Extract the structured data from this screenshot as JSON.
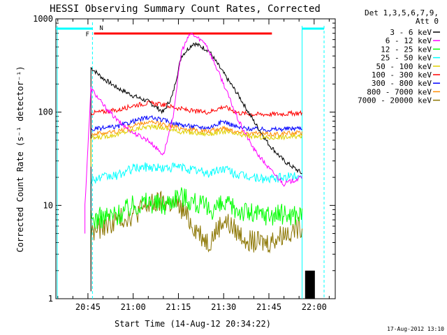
{
  "chart_data": {
    "type": "line",
    "title": "HESSI Observing Summary Count Rates, Corrected",
    "xlabel": "Start Time (14-Aug-12 20:34:22)",
    "ylabel": "Corrected Count Rate (s⁻¹ detector⁻¹)",
    "ylog": true,
    "ylim": [
      1,
      1000
    ],
    "xlim_minutes": [
      "20:34:22",
      "22:07"
    ],
    "x_ticks": [
      "20:45",
      "21:00",
      "21:15",
      "21:30",
      "21:45",
      "22:00"
    ],
    "y_ticks": [
      "1",
      "10",
      "100",
      "1000"
    ],
    "timestamp": "17-Aug-2012 13:10",
    "legend_title": [
      "Det 1,3,5,6,7,9,",
      "Att 0"
    ],
    "flags": {
      "flare_label": "F",
      "night_label": "N"
    },
    "series": [
      {
        "name": "3 - 6 keV",
        "color": "#000000",
        "points": [
          [
            "20:46",
            300
          ],
          [
            "20:50",
            230
          ],
          [
            "20:55",
            180
          ],
          [
            "21:00",
            150
          ],
          [
            "21:05",
            130
          ],
          [
            "21:10",
            100
          ],
          [
            "21:13",
            150
          ],
          [
            "21:16",
            400
          ],
          [
            "21:20",
            550
          ],
          [
            "21:25",
            460
          ],
          [
            "21:30",
            260
          ],
          [
            "21:35",
            150
          ],
          [
            "21:40",
            80
          ],
          [
            "21:45",
            45
          ],
          [
            "21:50",
            30
          ],
          [
            "21:56",
            22
          ]
        ]
      },
      {
        "name": "6 - 12 keV",
        "color": "#ff00ff",
        "points": [
          [
            "20:44",
            10
          ],
          [
            "20:46",
            180
          ],
          [
            "20:50",
            120
          ],
          [
            "20:55",
            80
          ],
          [
            "21:00",
            60
          ],
          [
            "21:05",
            50
          ],
          [
            "21:10",
            35
          ],
          [
            "21:13",
            80
          ],
          [
            "21:16",
            450
          ],
          [
            "21:19",
            700
          ],
          [
            "21:24",
            550
          ],
          [
            "21:30",
            200
          ],
          [
            "21:35",
            80
          ],
          [
            "21:40",
            40
          ],
          [
            "21:45",
            25
          ],
          [
            "21:50",
            17
          ],
          [
            "21:56",
            20
          ]
        ]
      },
      {
        "name": "12 - 25 keV",
        "color": "#00ff00",
        "points": [
          [
            "20:46",
            7
          ],
          [
            "20:55",
            8
          ],
          [
            "21:00",
            10
          ],
          [
            "21:05",
            11
          ],
          [
            "21:10",
            10
          ],
          [
            "21:15",
            13
          ],
          [
            "21:20",
            11
          ],
          [
            "21:25",
            9
          ],
          [
            "21:30",
            10
          ],
          [
            "21:35",
            9
          ],
          [
            "21:40",
            8
          ],
          [
            "21:45",
            8
          ],
          [
            "21:50",
            8
          ],
          [
            "21:56",
            8
          ]
        ]
      },
      {
        "name": "25 - 50 keV",
        "color": "#00ffff",
        "points": [
          [
            "20:46",
            19
          ],
          [
            "20:55",
            21
          ],
          [
            "21:00",
            25
          ],
          [
            "21:05",
            26
          ],
          [
            "21:10",
            25
          ],
          [
            "21:15",
            26
          ],
          [
            "21:20",
            24
          ],
          [
            "21:25",
            22
          ],
          [
            "21:30",
            25
          ],
          [
            "21:35",
            21
          ],
          [
            "21:40",
            20
          ],
          [
            "21:45",
            19
          ],
          [
            "21:50",
            20
          ],
          [
            "21:56",
            21
          ]
        ]
      },
      {
        "name": "50 - 100 keV",
        "color": "#e0d000",
        "points": [
          [
            "20:46",
            52
          ],
          [
            "20:55",
            58
          ],
          [
            "21:00",
            65
          ],
          [
            "21:05",
            70
          ],
          [
            "21:10",
            68
          ],
          [
            "21:15",
            62
          ],
          [
            "21:20",
            60
          ],
          [
            "21:25",
            58
          ],
          [
            "21:30",
            62
          ],
          [
            "21:35",
            57
          ],
          [
            "21:40",
            55
          ],
          [
            "21:45",
            53
          ],
          [
            "21:50",
            54
          ],
          [
            "21:56",
            55
          ]
        ]
      },
      {
        "name": "100 - 300 keV",
        "color": "#ff0000",
        "points": [
          [
            "20:46",
            98
          ],
          [
            "20:55",
            105
          ],
          [
            "21:00",
            118
          ],
          [
            "21:05",
            125
          ],
          [
            "21:10",
            120
          ],
          [
            "21:15",
            110
          ],
          [
            "21:20",
            102
          ],
          [
            "21:25",
            100
          ],
          [
            "21:30",
            115
          ],
          [
            "21:35",
            98
          ],
          [
            "21:40",
            95
          ],
          [
            "21:45",
            95
          ],
          [
            "21:50",
            96
          ],
          [
            "21:56",
            98
          ]
        ]
      },
      {
        "name": "300 - 800 keV",
        "color": "#0000ff",
        "points": [
          [
            "20:46",
            65
          ],
          [
            "20:55",
            70
          ],
          [
            "21:00",
            80
          ],
          [
            "21:05",
            88
          ],
          [
            "21:10",
            82
          ],
          [
            "21:15",
            74
          ],
          [
            "21:20",
            70
          ],
          [
            "21:25",
            68
          ],
          [
            "21:30",
            80
          ],
          [
            "21:35",
            68
          ],
          [
            "21:40",
            66
          ],
          [
            "21:45",
            65
          ],
          [
            "21:50",
            66
          ],
          [
            "21:56",
            68
          ]
        ]
      },
      {
        "name": "800 - 7000 keV",
        "color": "#ff8c00",
        "points": [
          [
            "20:46",
            58
          ],
          [
            "20:55",
            62
          ],
          [
            "21:00",
            72
          ],
          [
            "21:05",
            78
          ],
          [
            "21:10",
            74
          ],
          [
            "21:15",
            68
          ],
          [
            "21:20",
            64
          ],
          [
            "21:25",
            62
          ],
          [
            "21:30",
            68
          ],
          [
            "21:35",
            61
          ],
          [
            "21:40",
            59
          ],
          [
            "21:45",
            58
          ],
          [
            "21:50",
            59
          ],
          [
            "21:56",
            60
          ]
        ]
      },
      {
        "name": "7000 - 20000 keV",
        "color": "#8b7500",
        "points": [
          [
            "20:46",
            5
          ],
          [
            "20:50",
            6
          ],
          [
            "20:55",
            7
          ],
          [
            "21:00",
            8
          ],
          [
            "21:05",
            10
          ],
          [
            "21:10",
            11
          ],
          [
            "21:15",
            10
          ],
          [
            "21:20",
            6
          ],
          [
            "21:25",
            4
          ],
          [
            "21:30",
            7
          ],
          [
            "21:35",
            5
          ],
          [
            "21:40",
            4
          ],
          [
            "21:45",
            4
          ],
          [
            "21:50",
            5
          ],
          [
            "21:56",
            6
          ]
        ]
      }
    ]
  }
}
